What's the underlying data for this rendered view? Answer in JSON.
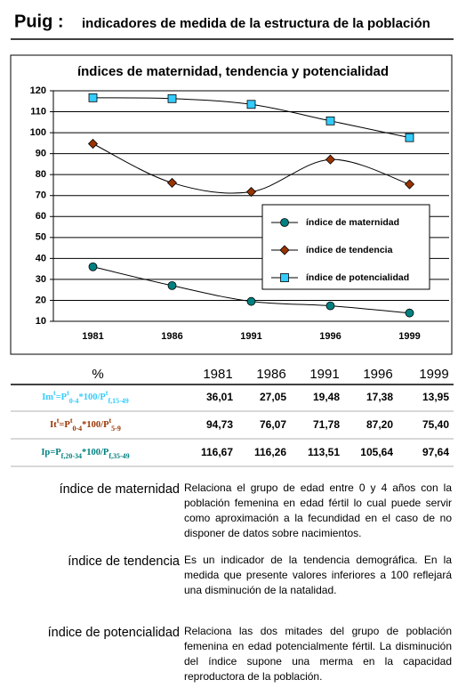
{
  "header": {
    "place": "Puig :",
    "title": "indicadores de medida de la estructura de la población"
  },
  "chart_data": {
    "type": "line",
    "title": "índices de maternidad, tendencia y potencialidad",
    "categories": [
      "1981",
      "1986",
      "1991",
      "1996",
      "1999"
    ],
    "series": [
      {
        "name": "índice de maternidad",
        "color": "#008080",
        "marker": "circle",
        "values": [
          36.01,
          27.05,
          19.48,
          17.38,
          13.95
        ]
      },
      {
        "name": "índice de tendencia",
        "color": "#993300",
        "marker": "diamond",
        "values": [
          94.73,
          76.07,
          71.78,
          87.2,
          75.4
        ]
      },
      {
        "name": "índice de potencialidad",
        "color": "#33ccff",
        "marker": "square",
        "values": [
          116.67,
          116.26,
          113.51,
          105.64,
          97.64
        ]
      }
    ],
    "ylim": [
      10,
      120
    ],
    "yticks": [
      10,
      20,
      30,
      40,
      50,
      60,
      70,
      80,
      90,
      100,
      110,
      120
    ],
    "grid": true
  },
  "table": {
    "header": [
      "%",
      "1981",
      "1986",
      "1991",
      "1996",
      "1999"
    ],
    "rows": [
      {
        "color": "#33ccff",
        "label_parts": [
          {
            "t": "Im"
          },
          {
            "t": "t",
            "pos": "sup"
          },
          {
            "t": "=P"
          },
          {
            "t": "t",
            "pos": "sup"
          },
          {
            "t": "0-4",
            "pos": "sub"
          },
          {
            "t": "*100/P"
          },
          {
            "t": "t",
            "pos": "sup"
          },
          {
            "t": "f,15-49",
            "pos": "sub"
          }
        ],
        "cells": [
          "36,01",
          "27,05",
          "19,48",
          "17,38",
          "13,95"
        ]
      },
      {
        "color": "#993300",
        "label_parts": [
          {
            "t": "It"
          },
          {
            "t": "t",
            "pos": "sup"
          },
          {
            "t": "=P"
          },
          {
            "t": "t",
            "pos": "sup"
          },
          {
            "t": "0-4",
            "pos": "sub"
          },
          {
            "t": "*100/P"
          },
          {
            "t": "t",
            "pos": "sup"
          },
          {
            "t": "5-9",
            "pos": "sub"
          }
        ],
        "cells": [
          "94,73",
          "76,07",
          "71,78",
          "87,20",
          "75,40"
        ]
      },
      {
        "color": "#008080",
        "label_parts": [
          {
            "t": "Ip=P"
          },
          {
            "t": "f,20-34",
            "pos": "sub"
          },
          {
            "t": "*100/P"
          },
          {
            "t": "f,35-49",
            "pos": "sub"
          }
        ],
        "cells": [
          "116,67",
          "116,26",
          "113,51",
          "105,64",
          "97,64"
        ]
      }
    ]
  },
  "definitions": [
    {
      "term": "índice de maternidad",
      "text": "Relaciona el grupo de edad entre 0 y 4 años con la población femenina en edad fértil lo cual puede servir como aproximación a la fecundidad en el caso de no disponer de datos sobre nacimientos."
    },
    {
      "term": "índice de tendencia",
      "text": "Es un indicador de la tendencia demográfica. En la medida que presente valores inferiores a 100 reflejará una disminución de la natalidad."
    },
    {
      "term": "índice de potencialidad",
      "text": "Relaciona las dos mitades del grupo de población femenina en edad potencialmente fértil. La disminución del índice supone una merma en la capacidad reproductora de la población."
    }
  ]
}
